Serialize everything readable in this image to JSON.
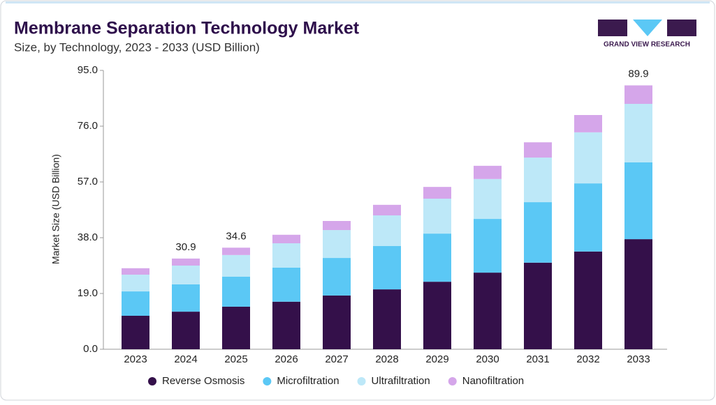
{
  "chart_data": {
    "type": "stacked-bar",
    "title": "Membrane Separation Technology Market",
    "subtitle": "Size, by Technology, 2023 - 2033 (USD Billion)",
    "brand": "GRAND VIEW RESEARCH",
    "y_label": "Market Size (USD Billion)",
    "categories": [
      "2023",
      "2024",
      "2025",
      "2026",
      "2027",
      "2028",
      "2029",
      "2030",
      "2031",
      "2032",
      "2033"
    ],
    "series": [
      {
        "name": "Reverse Osmosis",
        "color": "#34104a",
        "values": [
          11.4,
          12.8,
          14.5,
          16.2,
          18.3,
          20.4,
          23.0,
          26.1,
          29.5,
          33.3,
          37.5
        ]
      },
      {
        "name": "Microfiltration",
        "color": "#5bc8f5",
        "values": [
          8.3,
          9.3,
          10.2,
          11.6,
          12.8,
          14.8,
          16.4,
          18.3,
          20.6,
          23.2,
          26.2
        ]
      },
      {
        "name": "Ultrafiltration",
        "color": "#bde8f8",
        "values": [
          5.7,
          6.4,
          7.4,
          8.3,
          9.5,
          10.4,
          11.9,
          13.6,
          15.2,
          17.4,
          19.9
        ]
      },
      {
        "name": "Nanofiltration",
        "color": "#d5a6ea",
        "values": [
          2.2,
          2.4,
          2.5,
          2.9,
          3.1,
          3.6,
          4.0,
          4.5,
          5.2,
          5.9,
          6.3
        ]
      }
    ],
    "totals": [
      null,
      30.9,
      34.6,
      null,
      null,
      null,
      null,
      null,
      null,
      null,
      89.9
    ],
    "ylim": [
      0,
      95
    ],
    "yticks": [
      {
        "value": 0,
        "label": "0.0"
      },
      {
        "value": 19,
        "label": "19.0"
      },
      {
        "value": 38,
        "label": "38.0"
      },
      {
        "value": 57,
        "label": "57.0"
      },
      {
        "value": 76,
        "label": "76.0"
      },
      {
        "value": 95,
        "label": "95.0"
      }
    ],
    "legend": "bottom"
  }
}
